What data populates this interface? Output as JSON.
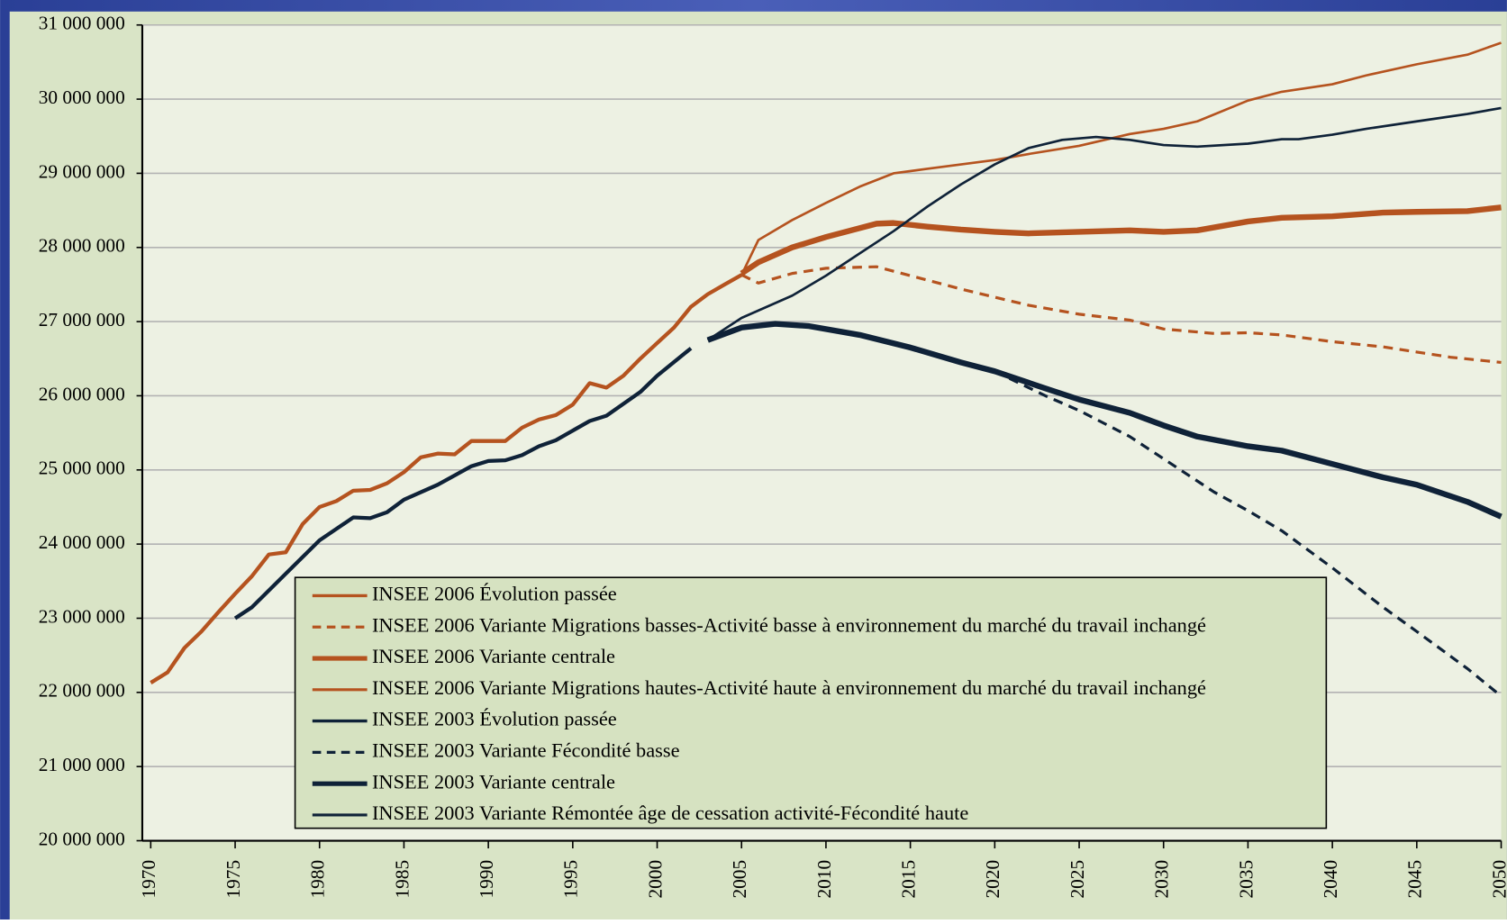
{
  "chart_data": {
    "type": "line",
    "xlim": [
      1969.5,
      2050
    ],
    "xticks": [
      1970,
      1975,
      1980,
      1985,
      1990,
      1995,
      2000,
      2005,
      2010,
      2015,
      2020,
      2025,
      2030,
      2035,
      2040,
      2045,
      2050
    ],
    "ylim": [
      20000000,
      31000000
    ],
    "yticks": [
      {
        "value": 20000000,
        "label": "20 000 000"
      },
      {
        "value": 21000000,
        "label": "21 000 000"
      },
      {
        "value": 22000000,
        "label": "22 000 000"
      },
      {
        "value": 23000000,
        "label": "23 000 000"
      },
      {
        "value": 24000000,
        "label": "24 000 000"
      },
      {
        "value": 25000000,
        "label": "25 000 000"
      },
      {
        "value": 26000000,
        "label": "26 000 000"
      },
      {
        "value": 27000000,
        "label": "27 000 000"
      },
      {
        "value": 28000000,
        "label": "28 000 000"
      },
      {
        "value": 29000000,
        "label": "29 000 000"
      },
      {
        "value": 30000000,
        "label": "30 000 000"
      },
      {
        "value": 31000000,
        "label": "31 000 000"
      }
    ],
    "grid": true,
    "series": [
      {
        "name": "INSEE 2006 Évolution passée",
        "color": "#b5531f",
        "width": 4,
        "dash": "solid",
        "x": [
          1970,
          1971,
          1972,
          1973,
          1974,
          1975,
          1976,
          1977,
          1978,
          1979,
          1980,
          1981,
          1982,
          1983,
          1984,
          1985,
          1986,
          1987,
          1988,
          1989,
          1990,
          1991,
          1992,
          1993,
          1994,
          1995,
          1996,
          1997,
          1998,
          1999,
          2000,
          2001,
          2002,
          2003,
          2004,
          2005
        ],
        "values": [
          22130000,
          22270000,
          22600000,
          22820000,
          23080000,
          23330000,
          23570000,
          23860000,
          23890000,
          24270000,
          24500000,
          24580000,
          24720000,
          24730000,
          24820000,
          24970000,
          25170000,
          25220000,
          25210000,
          25390000,
          25390000,
          25390000,
          25570000,
          25680000,
          25740000,
          25880000,
          26170000,
          26110000,
          26270000,
          26500000,
          26710000,
          26920000,
          27200000,
          27370000,
          27500000,
          27630000
        ]
      },
      {
        "name": "INSEE 2006 Variante Migrations basses-Activité basse à environnement du marché du travail inchangé",
        "color": "#b5531f",
        "width": 3,
        "dash": "dashed",
        "x": [
          2005,
          2006,
          2008,
          2010,
          2013,
          2015,
          2018,
          2020,
          2022,
          2025,
          2028,
          2030,
          2033,
          2035,
          2037,
          2040,
          2043,
          2045,
          2047,
          2050
        ],
        "values": [
          27630000,
          27520000,
          27650000,
          27720000,
          27740000,
          27620000,
          27440000,
          27330000,
          27220000,
          27100000,
          27020000,
          26900000,
          26840000,
          26850000,
          26820000,
          26730000,
          26660000,
          26590000,
          26520000,
          26450000
        ]
      },
      {
        "name": "INSEE 2006 Variante centrale",
        "color": "#b5531f",
        "width": 6,
        "dash": "solid",
        "x": [
          2005,
          2006,
          2008,
          2010,
          2013,
          2014,
          2016,
          2018,
          2020,
          2022,
          2025,
          2028,
          2030,
          2032,
          2035,
          2037,
          2040,
          2043,
          2045,
          2048,
          2050
        ],
        "values": [
          27650000,
          27800000,
          28000000,
          28140000,
          28320000,
          28330000,
          28280000,
          28240000,
          28210000,
          28190000,
          28210000,
          28230000,
          28210000,
          28230000,
          28350000,
          28400000,
          28420000,
          28470000,
          28480000,
          28490000,
          28540000
        ]
      },
      {
        "name": "INSEE 2006 Variante Migrations hautes-Activité haute à environnement du marché du travail inchangé",
        "color": "#b5531f",
        "width": 2.5,
        "dash": "solid",
        "x": [
          2005,
          2006,
          2008,
          2010,
          2012,
          2014,
          2016,
          2018,
          2020,
          2022,
          2025,
          2028,
          2030,
          2032,
          2035,
          2037,
          2040,
          2042,
          2045,
          2048,
          2050
        ],
        "values": [
          27630000,
          28100000,
          28370000,
          28600000,
          28820000,
          29000000,
          29060000,
          29120000,
          29180000,
          29260000,
          29370000,
          29530000,
          29600000,
          29700000,
          29980000,
          30100000,
          30200000,
          30320000,
          30470000,
          30600000,
          30760000
        ]
      },
      {
        "name": "INSEE 2003 Évolution passée",
        "color": "#0f2238",
        "width": 4,
        "dash": "solid",
        "x": [
          1975,
          1976,
          1978,
          1980,
          1982,
          1983,
          1984,
          1985,
          1987,
          1989,
          1990,
          1991,
          1992,
          1993,
          1994,
          1996,
          1997,
          1999,
          2000,
          2002
        ],
        "values": [
          23000000,
          23150000,
          23600000,
          24050000,
          24360000,
          24350000,
          24430000,
          24600000,
          24800000,
          25050000,
          25120000,
          25130000,
          25200000,
          25320000,
          25400000,
          25660000,
          25730000,
          26050000,
          26270000,
          26640000
        ]
      },
      {
        "name": "INSEE 2003 Variante Fécondité basse",
        "color": "#0f2238",
        "width": 3,
        "dash": "dashed",
        "x": [
          2020,
          2023,
          2025,
          2028,
          2030,
          2033,
          2035,
          2037,
          2040,
          2043,
          2045,
          2048,
          2050
        ],
        "values": [
          26330000,
          26000000,
          25800000,
          25450000,
          25150000,
          24700000,
          24450000,
          24180000,
          23680000,
          23150000,
          22820000,
          22320000,
          21950000
        ]
      },
      {
        "name": "INSEE 2003 Variante centrale",
        "color": "#0f2238",
        "width": 6,
        "dash": "solid",
        "x": [
          2003,
          2005,
          2007,
          2009,
          2012,
          2015,
          2018,
          2020,
          2023,
          2025,
          2028,
          2030,
          2032,
          2035,
          2037,
          2040,
          2043,
          2045,
          2048,
          2050
        ],
        "values": [
          26750000,
          26920000,
          26970000,
          26940000,
          26820000,
          26650000,
          26450000,
          26330000,
          26100000,
          25950000,
          25770000,
          25600000,
          25450000,
          25320000,
          25260000,
          25080000,
          24900000,
          24800000,
          24570000,
          24370000
        ]
      },
      {
        "name": "INSEE 2003 Variante Rémontée âge de cessation activité-Fécondité haute",
        "color": "#0f2238",
        "width": 2.5,
        "dash": "solid",
        "x": [
          2003,
          2005,
          2008,
          2010,
          2012,
          2014,
          2016,
          2018,
          2020,
          2022,
          2024,
          2026,
          2028,
          2030,
          2032,
          2035,
          2037,
          2038,
          2040,
          2042,
          2045,
          2048,
          2050
        ],
        "values": [
          26750000,
          27050000,
          27350000,
          27620000,
          27920000,
          28220000,
          28550000,
          28850000,
          29120000,
          29340000,
          29450000,
          29490000,
          29450000,
          29380000,
          29360000,
          29400000,
          29460000,
          29460000,
          29520000,
          29600000,
          29700000,
          29800000,
          29880000
        ]
      }
    ]
  }
}
